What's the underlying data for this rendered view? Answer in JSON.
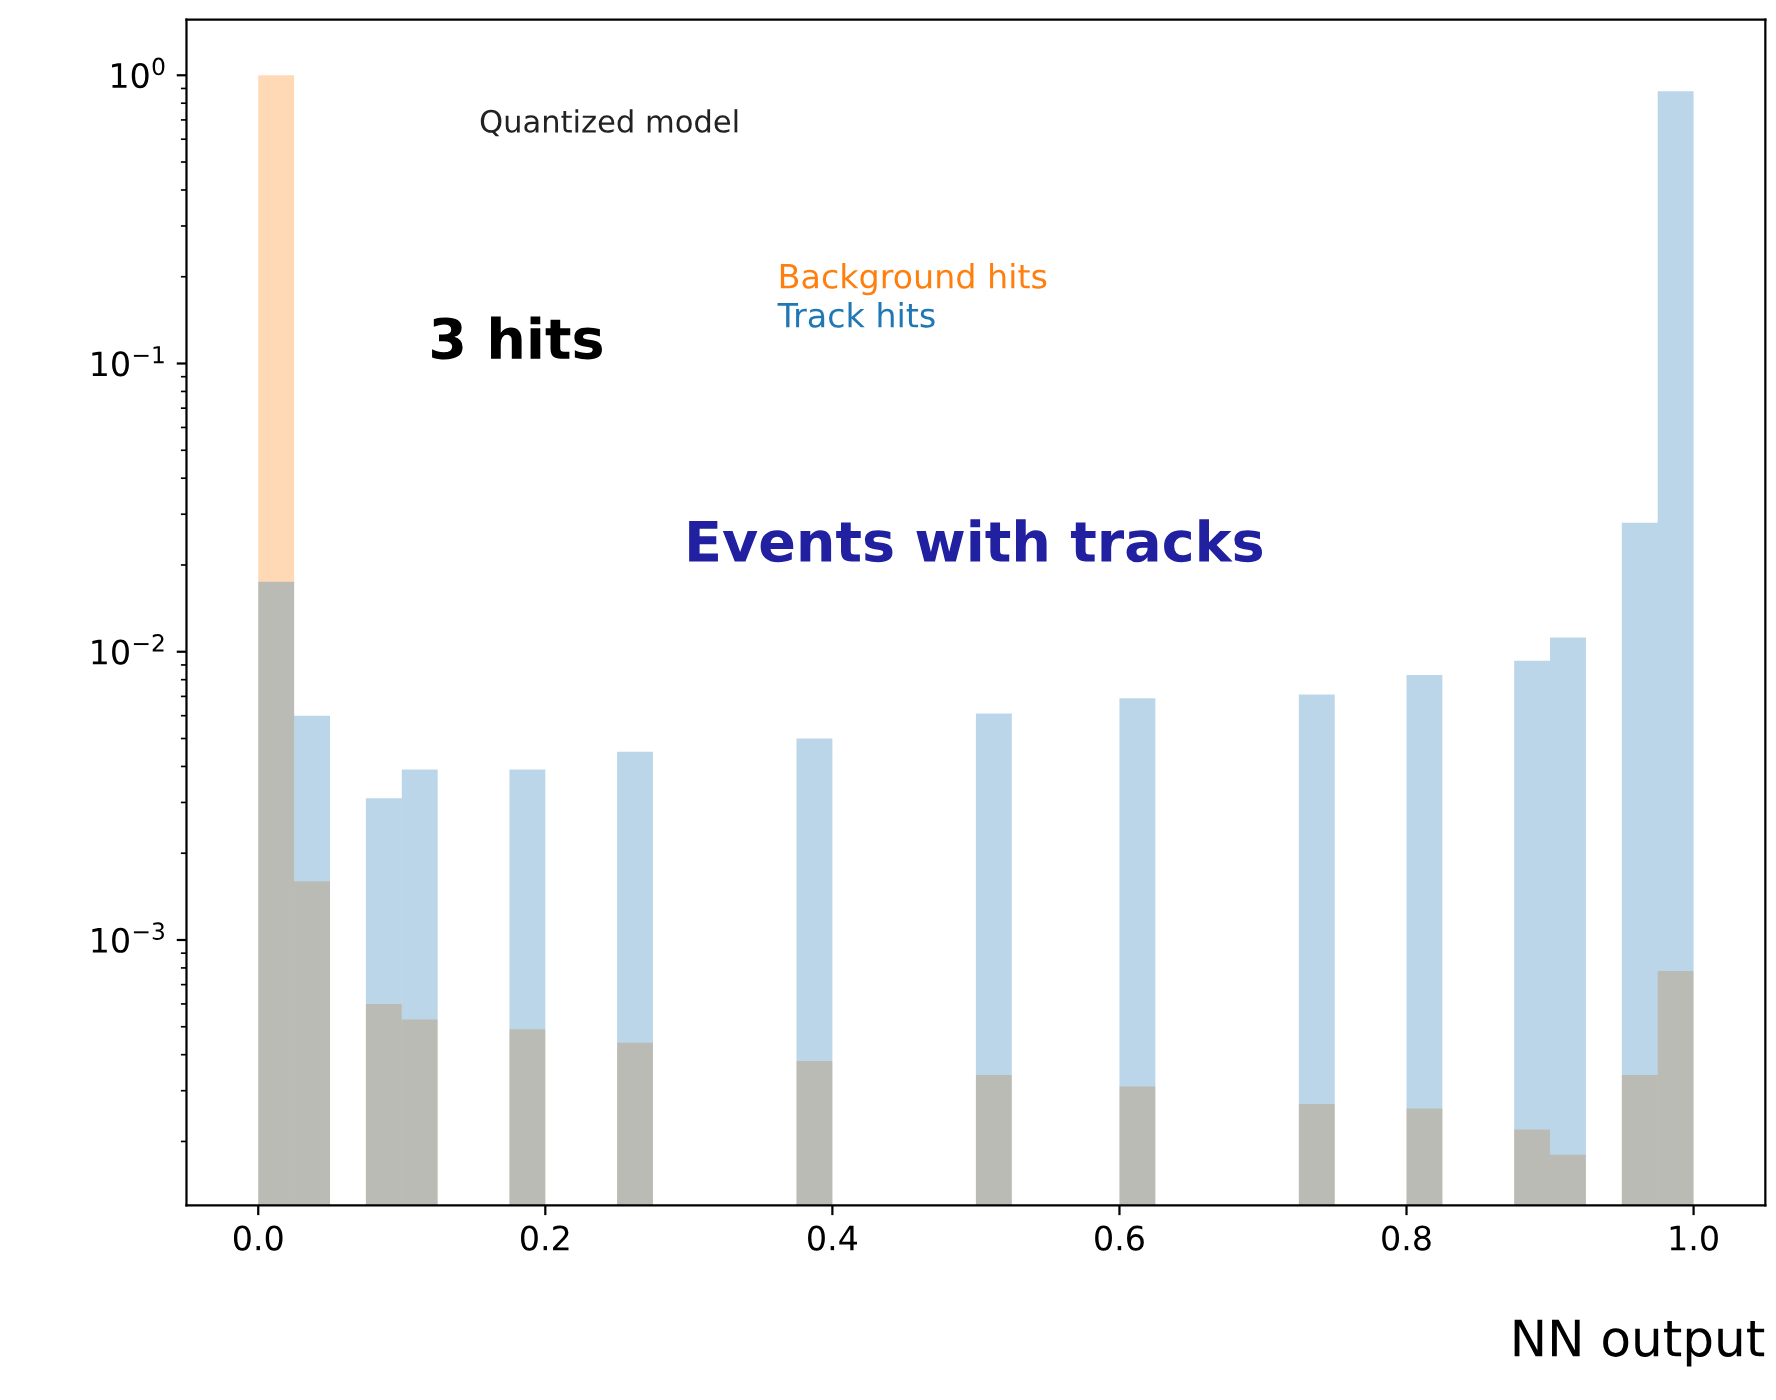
{
  "chart_data": {
    "type": "histogram",
    "xlabel": "NN output",
    "annotations": [
      "Quantized model",
      "3 hits",
      "Events with tracks"
    ],
    "bins": [
      0,
      0.025,
      0.05,
      0.075,
      0.1,
      0.125,
      0.15,
      0.175,
      0.2,
      0.225,
      0.25,
      0.275,
      0.3,
      0.325,
      0.35,
      0.375,
      0.4,
      0.425,
      0.45,
      0.475,
      0.5,
      0.525,
      0.55,
      0.575,
      0.6,
      0.625,
      0.65,
      0.675,
      0.7,
      0.725,
      0.75,
      0.775,
      0.8,
      0.825,
      0.85,
      0.875,
      0.9,
      0.925,
      0.95,
      0.975,
      1.0
    ],
    "series": [
      {
        "name": "Background hits",
        "color": "#ff7f0e",
        "values": [
          1.0,
          0.0016,
          null,
          0.0006,
          0.00053,
          null,
          null,
          0.00049,
          null,
          null,
          0.00044,
          null,
          null,
          null,
          null,
          0.00038,
          null,
          null,
          null,
          null,
          0.00034,
          null,
          null,
          null,
          0.00031,
          null,
          null,
          null,
          null,
          0.00027,
          null,
          null,
          0.00026,
          null,
          null,
          0.00022,
          0.00018,
          null,
          0.00034,
          0.00078
        ]
      },
      {
        "name": "Track hits",
        "color": "#1f77b4",
        "values": [
          0.0175,
          0.006,
          null,
          0.0031,
          0.0039,
          null,
          null,
          0.0039,
          null,
          null,
          0.0045,
          null,
          null,
          null,
          null,
          0.005,
          null,
          null,
          null,
          null,
          0.0061,
          null,
          null,
          null,
          0.0069,
          null,
          null,
          null,
          null,
          0.0071,
          null,
          null,
          0.0083,
          null,
          null,
          0.0093,
          0.0112,
          null,
          0.028,
          0.88
        ]
      }
    ],
    "log": "y",
    "xlim": [
      -0.05,
      1.05
    ],
    "ylim": [
      0.00012,
      1.56
    ],
    "xticks": [
      {
        "value": 0,
        "label": "0.0"
      },
      {
        "value": 0.2,
        "label": "0.2"
      },
      {
        "value": 0.4,
        "label": "0.4"
      },
      {
        "value": 0.6,
        "label": "0.6"
      },
      {
        "value": 0.8,
        "label": "0.8"
      },
      {
        "value": 1.0,
        "label": "1.0"
      }
    ],
    "yticks": [
      {
        "value": 0.001,
        "label": "10$^{−3}$"
      },
      {
        "value": 0.01,
        "label": "10$^{−2}$"
      },
      {
        "value": 0.1,
        "label": "10$^{−1}$"
      },
      {
        "value": 1,
        "label": "10$^{0}$"
      }
    ],
    "legend": "top",
    "grid": false
  }
}
